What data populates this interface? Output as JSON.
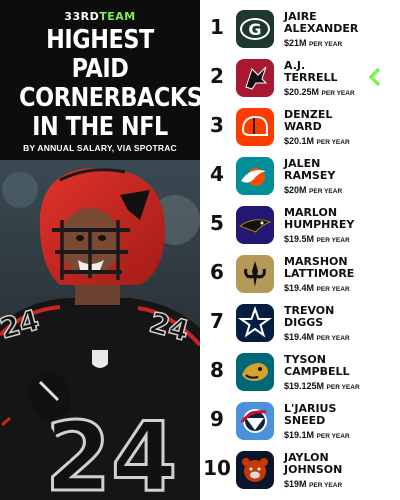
{
  "brand": {
    "prefix": "33RD",
    "suffix": "TEAM"
  },
  "headline": {
    "line1": "HIGHEST PAID",
    "line2": "CORNERBACKS",
    "line3": "IN THE NFL"
  },
  "subtitle": "BY ANNUAL SALARY, VIA SPOTRAC",
  "per_year_label": "PER YEAR",
  "players": [
    {
      "rank": "1",
      "first": "JAIRE",
      "last": "ALEXANDER",
      "salary": "$21M",
      "team_icon": "packers-logo-icon",
      "color": "#203731"
    },
    {
      "rank": "2",
      "first": "A.J.",
      "last": "TERRELL",
      "salary": "$20.25M",
      "team_icon": "falcons-logo-icon",
      "color": "#a71930",
      "highlighted": true
    },
    {
      "rank": "3",
      "first": "DENZEL",
      "last": "WARD",
      "salary": "$20.1M",
      "team_icon": "browns-logo-icon",
      "color": "#ff3c00"
    },
    {
      "rank": "4",
      "first": "JALEN",
      "last": "RAMSEY",
      "salary": "$20M",
      "team_icon": "dolphins-logo-icon",
      "color": "#008e97"
    },
    {
      "rank": "5",
      "first": "MARLON",
      "last": "HUMPHREY",
      "salary": "$19.5M",
      "team_icon": "ravens-logo-icon",
      "color": "#241773"
    },
    {
      "rank": "6",
      "first": "MARSHON",
      "last": "LATTIMORE",
      "salary": "$19.4M",
      "team_icon": "saints-logo-icon",
      "color": "#b59a57"
    },
    {
      "rank": "7",
      "first": "TREVON",
      "last": "DIGGS",
      "salary": "$19.4M",
      "team_icon": "cowboys-logo-icon",
      "color": "#041e42"
    },
    {
      "rank": "8",
      "first": "TYSON",
      "last": "CAMPBELL",
      "salary": "$19.125M",
      "team_icon": "jaguars-logo-icon",
      "color": "#006778"
    },
    {
      "rank": "9",
      "first": "L'JARIUS",
      "last": "SNEED",
      "salary": "$19.1M",
      "team_icon": "titans-logo-icon",
      "color": "#4b92db"
    },
    {
      "rank": "10",
      "first": "JAYLON",
      "last": "JOHNSON",
      "salary": "$19M",
      "team_icon": "bears-logo-icon",
      "color": "#0b162a"
    }
  ],
  "accent_color": "#7cf24a"
}
